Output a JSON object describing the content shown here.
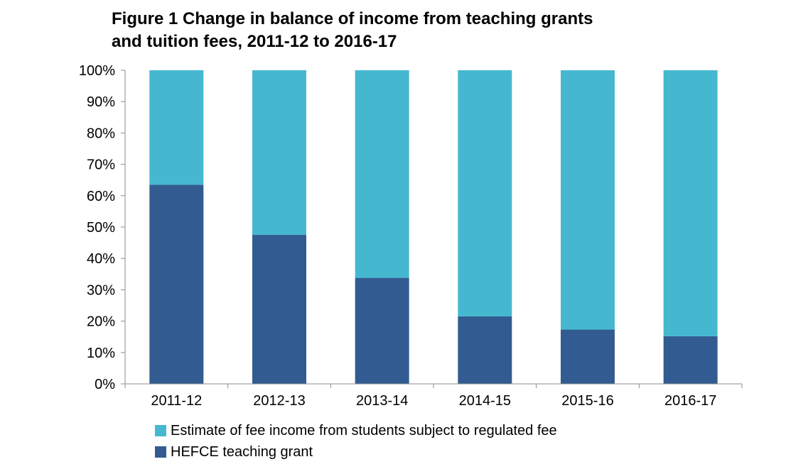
{
  "title_line1": "Figure 1 Change in balance of income from teaching grants",
  "title_line2": "and tuition fees, 2011-12 to 2016-17",
  "chart_data": {
    "type": "bar",
    "stacked": true,
    "categories": [
      "2011-12",
      "2012-13",
      "2013-14",
      "2014-15",
      "2015-16",
      "2016-17"
    ],
    "series": [
      {
        "name": "HEFCE teaching grant",
        "color": "#325C91",
        "values": [
          63.5,
          47.5,
          33.8,
          21.5,
          17.3,
          15.2
        ]
      },
      {
        "name": "Estimate of fee income from students subject to regulated fee",
        "color": "#45B8D0",
        "values": [
          36.5,
          52.5,
          66.2,
          78.5,
          82.7,
          84.8
        ]
      }
    ],
    "yticks": [
      "0%",
      "10%",
      "20%",
      "30%",
      "40%",
      "50%",
      "60%",
      "70%",
      "80%",
      "90%",
      "100%"
    ],
    "ylim": [
      0,
      100
    ],
    "legend_position": "bottom",
    "grid": false
  }
}
